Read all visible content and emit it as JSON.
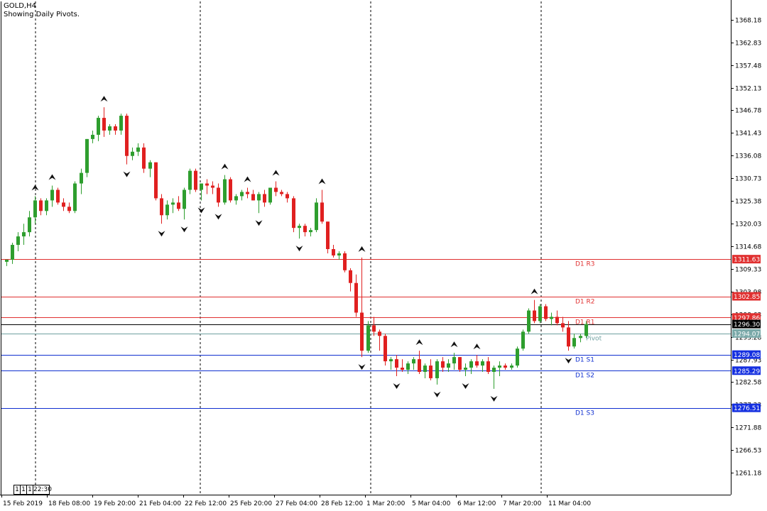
{
  "header": {
    "symbol": "GOLD,H4",
    "indicator_label": "Showing Daily Pivots."
  },
  "timeframe_buttons": [
    "1",
    "1",
    "1",
    "22:30"
  ],
  "colors": {
    "bull": "#2e9e2e",
    "bear": "#e02020",
    "resistance": "#e03030",
    "support": "#1030d0",
    "pivot": "#6fa0a0",
    "current": "#000000",
    "resistance_tag": "#e03030",
    "support_tag": "#1530e0",
    "pivot_tag": "#7aa9a9"
  },
  "chart_data": {
    "type": "candlestick",
    "title": "GOLD,H4",
    "subtitle": "Showing Daily Pivots.",
    "ylim": [
      1256.0,
      1372.5
    ],
    "y_ticks": [
      "1368.18",
      "1362.83",
      "1357.48",
      "1352.13",
      "1346.78",
      "1341.43",
      "1336.08",
      "1330.73",
      "1325.38",
      "1320.03",
      "1314.68",
      "1309.33",
      "1303.98",
      "1298.63",
      "1293.28",
      "1287.93",
      "1282.58",
      "1277.23",
      "1271.88",
      "1266.53",
      "1261.18"
    ],
    "x_labels": [
      "15 Feb 2019",
      "18 Feb 08:00",
      "19 Feb 20:00",
      "21 Feb 04:00",
      "22 Feb 12:00",
      "25 Feb 20:00",
      "27 Feb 04:00",
      "28 Feb 12:00",
      "1 Mar 20:00",
      "5 Mar 04:00",
      "6 Mar 12:00",
      "7 Mar 20:00",
      "11 Mar 04:00"
    ],
    "period_separators": [
      "18 Feb",
      "22 Feb",
      "1 Mar",
      "8 Mar"
    ],
    "pivot_levels": [
      {
        "name": "D1  R3",
        "value": 1311.63,
        "price_tag": "1311.63",
        "kind": "resistance"
      },
      {
        "name": "D1  R2",
        "value": 1302.85,
        "price_tag": "1302.85",
        "kind": "resistance"
      },
      {
        "name": "D1  R1",
        "value": 1297.86,
        "price_tag": "1297.86",
        "kind": "resistance"
      },
      {
        "name": "Pivot",
        "value": 1294.07,
        "price_tag": "1294.07",
        "kind": "pivot"
      },
      {
        "name": "D1  S1",
        "value": 1289.08,
        "price_tag": "1289.08",
        "kind": "support"
      },
      {
        "name": "D1  S2",
        "value": 1285.29,
        "price_tag": "1285.29",
        "kind": "support"
      },
      {
        "name": "D1  S3",
        "value": 1276.51,
        "price_tag": "1276.51",
        "kind": "support"
      }
    ],
    "current_price": {
      "value": 1296.3,
      "label": "1296.30"
    },
    "candles": [
      [
        1311.0,
        1311.5,
        1310.0,
        1311.5
      ],
      [
        1311.5,
        1315.5,
        1310.5,
        1315.0
      ],
      [
        1315.0,
        1318.0,
        1313.5,
        1317.0
      ],
      [
        1317.0,
        1320.0,
        1315.0,
        1318.0
      ],
      [
        1318.0,
        1323.0,
        1317.0,
        1321.5
      ],
      [
        1321.5,
        1326.5,
        1320.0,
        1325.5
      ],
      [
        1325.5,
        1326.0,
        1322.0,
        1323.0
      ],
      [
        1323.0,
        1326.0,
        1322.0,
        1325.5
      ],
      [
        1325.5,
        1329.0,
        1324.0,
        1328.0
      ],
      [
        1328.0,
        1328.5,
        1324.5,
        1325.0
      ],
      [
        1325.0,
        1326.0,
        1323.0,
        1324.0
      ],
      [
        1324.0,
        1325.0,
        1322.5,
        1323.0
      ],
      [
        1323.0,
        1330.0,
        1322.5,
        1329.5
      ],
      [
        1329.5,
        1333.0,
        1327.0,
        1332.0
      ],
      [
        1332.0,
        1340.0,
        1331.0,
        1340.0
      ],
      [
        1340.0,
        1342.0,
        1339.0,
        1341.0
      ],
      [
        1341.0,
        1345.5,
        1339.5,
        1345.0
      ],
      [
        1345.0,
        1347.5,
        1340.5,
        1342.0
      ],
      [
        1342.0,
        1343.5,
        1341.0,
        1343.0
      ],
      [
        1343.0,
        1343.5,
        1341.0,
        1342.0
      ],
      [
        1342.0,
        1346.0,
        1341.0,
        1345.5
      ],
      [
        1345.5,
        1346.0,
        1334.0,
        1336.0
      ],
      [
        1336.0,
        1338.0,
        1335.0,
        1337.0
      ],
      [
        1337.0,
        1339.0,
        1336.0,
        1338.0
      ],
      [
        1338.0,
        1339.0,
        1332.0,
        1333.0
      ],
      [
        1333.0,
        1335.0,
        1331.0,
        1334.5
      ],
      [
        1334.5,
        1334.5,
        1325.5,
        1326.0
      ],
      [
        1326.0,
        1327.0,
        1320.0,
        1322.0
      ],
      [
        1322.0,
        1325.5,
        1321.0,
        1324.5
      ],
      [
        1324.5,
        1326.0,
        1322.5,
        1325.0
      ],
      [
        1325.0,
        1326.5,
        1323.0,
        1323.5
      ],
      [
        1323.5,
        1328.5,
        1321.0,
        1328.0
      ],
      [
        1328.0,
        1333.0,
        1327.0,
        1332.5
      ],
      [
        1332.5,
        1333.0,
        1327.5,
        1328.0
      ],
      [
        1328.0,
        1329.5,
        1325.5,
        1329.5
      ],
      [
        1329.5,
        1330.5,
        1327.0,
        1329.0
      ],
      [
        1329.0,
        1330.0,
        1327.0,
        1328.5
      ],
      [
        1328.5,
        1329.5,
        1324.0,
        1325.0
      ],
      [
        1325.0,
        1331.5,
        1324.5,
        1330.5
      ],
      [
        1330.5,
        1331.0,
        1325.0,
        1325.5
      ],
      [
        1325.5,
        1327.0,
        1324.5,
        1326.5
      ],
      [
        1326.5,
        1328.0,
        1325.5,
        1327.5
      ],
      [
        1327.5,
        1328.5,
        1326.0,
        1327.0
      ],
      [
        1327.0,
        1328.0,
        1325.5,
        1325.5
      ],
      [
        1325.5,
        1327.5,
        1322.5,
        1327.0
      ],
      [
        1327.0,
        1328.0,
        1324.0,
        1325.0
      ],
      [
        1325.0,
        1328.5,
        1324.5,
        1328.5
      ],
      [
        1328.5,
        1330.0,
        1326.5,
        1327.5
      ],
      [
        1327.5,
        1328.0,
        1326.5,
        1327.0
      ],
      [
        1327.0,
        1327.5,
        1325.0,
        1326.0
      ],
      [
        1326.0,
        1326.5,
        1318.0,
        1319.0
      ],
      [
        1319.0,
        1320.0,
        1316.5,
        1319.5
      ],
      [
        1319.5,
        1320.0,
        1317.0,
        1318.0
      ],
      [
        1318.0,
        1319.0,
        1317.0,
        1318.5
      ],
      [
        1318.5,
        1326.0,
        1318.0,
        1325.0
      ],
      [
        1325.0,
        1328.0,
        1320.0,
        1320.5
      ],
      [
        1320.5,
        1320.5,
        1313.0,
        1314.0
      ],
      [
        1314.0,
        1315.0,
        1312.0,
        1312.5
      ],
      [
        1312.5,
        1313.5,
        1311.5,
        1313.0
      ],
      [
        1313.0,
        1313.5,
        1308.5,
        1309.0
      ],
      [
        1309.0,
        1309.5,
        1304.0,
        1306.0
      ],
      [
        1306.0,
        1308.0,
        1298.0,
        1299.0
      ],
      [
        1299.0,
        1312.0,
        1288.5,
        1290.0
      ],
      [
        1290.0,
        1297.0,
        1289.5,
        1296.0
      ],
      [
        1296.0,
        1298.0,
        1293.5,
        1294.5
      ],
      [
        1294.5,
        1295.0,
        1290.0,
        1293.5
      ],
      [
        1293.5,
        1294.0,
        1286.5,
        1287.5
      ],
      [
        1287.5,
        1288.5,
        1285.5,
        1288.0
      ],
      [
        1288.0,
        1289.0,
        1284.0,
        1286.0
      ],
      [
        1286.0,
        1288.0,
        1285.0,
        1285.5
      ],
      [
        1285.5,
        1287.5,
        1284.5,
        1287.0
      ],
      [
        1287.0,
        1288.5,
        1285.5,
        1288.0
      ],
      [
        1288.0,
        1290.0,
        1284.5,
        1285.0
      ],
      [
        1285.0,
        1287.0,
        1283.5,
        1286.5
      ],
      [
        1286.5,
        1288.0,
        1283.0,
        1283.5
      ],
      [
        1283.5,
        1288.0,
        1282.0,
        1287.5
      ],
      [
        1287.5,
        1288.5,
        1285.0,
        1286.0
      ],
      [
        1286.0,
        1288.0,
        1285.0,
        1287.0
      ],
      [
        1287.0,
        1289.5,
        1285.5,
        1288.5
      ],
      [
        1288.5,
        1288.5,
        1285.0,
        1285.5
      ],
      [
        1285.5,
        1287.0,
        1284.0,
        1286.0
      ],
      [
        1286.0,
        1288.0,
        1284.5,
        1287.5
      ],
      [
        1287.5,
        1289.0,
        1286.0,
        1286.5
      ],
      [
        1286.5,
        1288.0,
        1285.0,
        1287.5
      ],
      [
        1287.5,
        1288.5,
        1284.5,
        1285.0
      ],
      [
        1285.0,
        1286.5,
        1281.0,
        1286.0
      ],
      [
        1286.0,
        1287.5,
        1284.0,
        1286.5
      ],
      [
        1286.5,
        1287.0,
        1285.5,
        1286.0
      ],
      [
        1286.0,
        1287.0,
        1285.5,
        1286.5
      ],
      [
        1286.5,
        1291.0,
        1286.0,
        1290.5
      ],
      [
        1290.5,
        1295.0,
        1290.0,
        1294.5
      ],
      [
        1294.5,
        1300.0,
        1294.0,
        1299.5
      ],
      [
        1299.5,
        1302.0,
        1296.5,
        1297.0
      ],
      [
        1297.0,
        1301.0,
        1296.5,
        1300.5
      ],
      [
        1300.5,
        1301.0,
        1297.0,
        1297.5
      ],
      [
        1297.5,
        1299.0,
        1296.0,
        1298.0
      ],
      [
        1298.0,
        1299.5,
        1296.0,
        1296.5
      ],
      [
        1296.5,
        1298.0,
        1294.5,
        1295.5
      ],
      [
        1295.5,
        1297.0,
        1290.0,
        1291.0
      ],
      [
        1291.0,
        1294.0,
        1290.5,
        1293.0
      ],
      [
        1293.0,
        1294.0,
        1292.0,
        1293.5
      ],
      [
        1293.5,
        1297.0,
        1293.0,
        1296.3
      ]
    ]
  }
}
